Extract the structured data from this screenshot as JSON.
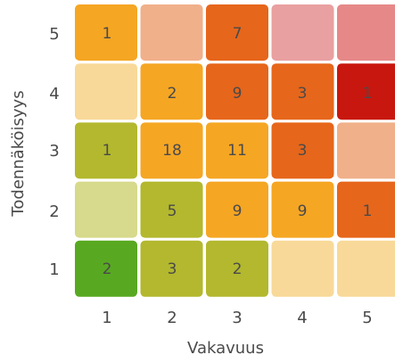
{
  "chart_data": {
    "type": "heatmap",
    "xlabel": "Vakavuus",
    "ylabel": "Todennäköisyys",
    "x_ticks": [
      "1",
      "2",
      "3",
      "4",
      "5"
    ],
    "y_ticks": [
      "5",
      "4",
      "3",
      "2",
      "1"
    ],
    "cells": [
      [
        {
          "value": "1",
          "color": "#f5a623"
        },
        {
          "value": "",
          "color": "#f0b08a"
        },
        {
          "value": "7",
          "color": "#e6661b"
        },
        {
          "value": "",
          "color": "#e9a0a0"
        },
        {
          "value": "",
          "color": "#e68888"
        }
      ],
      [
        {
          "value": "",
          "color": "#f8d999"
        },
        {
          "value": "2",
          "color": "#f5a623"
        },
        {
          "value": "9",
          "color": "#e6661b"
        },
        {
          "value": "3",
          "color": "#e6661b"
        },
        {
          "value": "1",
          "color": "#c8170e"
        }
      ],
      [
        {
          "value": "1",
          "color": "#b3b82e"
        },
        {
          "value": "18",
          "color": "#f5a623"
        },
        {
          "value": "11",
          "color": "#f5a623"
        },
        {
          "value": "3",
          "color": "#e6661b"
        },
        {
          "value": "",
          "color": "#f0b08a"
        }
      ],
      [
        {
          "value": "",
          "color": "#d7d98c"
        },
        {
          "value": "5",
          "color": "#b3b82e"
        },
        {
          "value": "9",
          "color": "#f5a623"
        },
        {
          "value": "9",
          "color": "#f5a623"
        },
        {
          "value": "1",
          "color": "#e6661b"
        }
      ],
      [
        {
          "value": "2",
          "color": "#58a921"
        },
        {
          "value": "3",
          "color": "#b3b82e"
        },
        {
          "value": "2",
          "color": "#b3b82e"
        },
        {
          "value": "",
          "color": "#f8d999"
        },
        {
          "value": "",
          "color": "#f8d999"
        }
      ]
    ]
  }
}
